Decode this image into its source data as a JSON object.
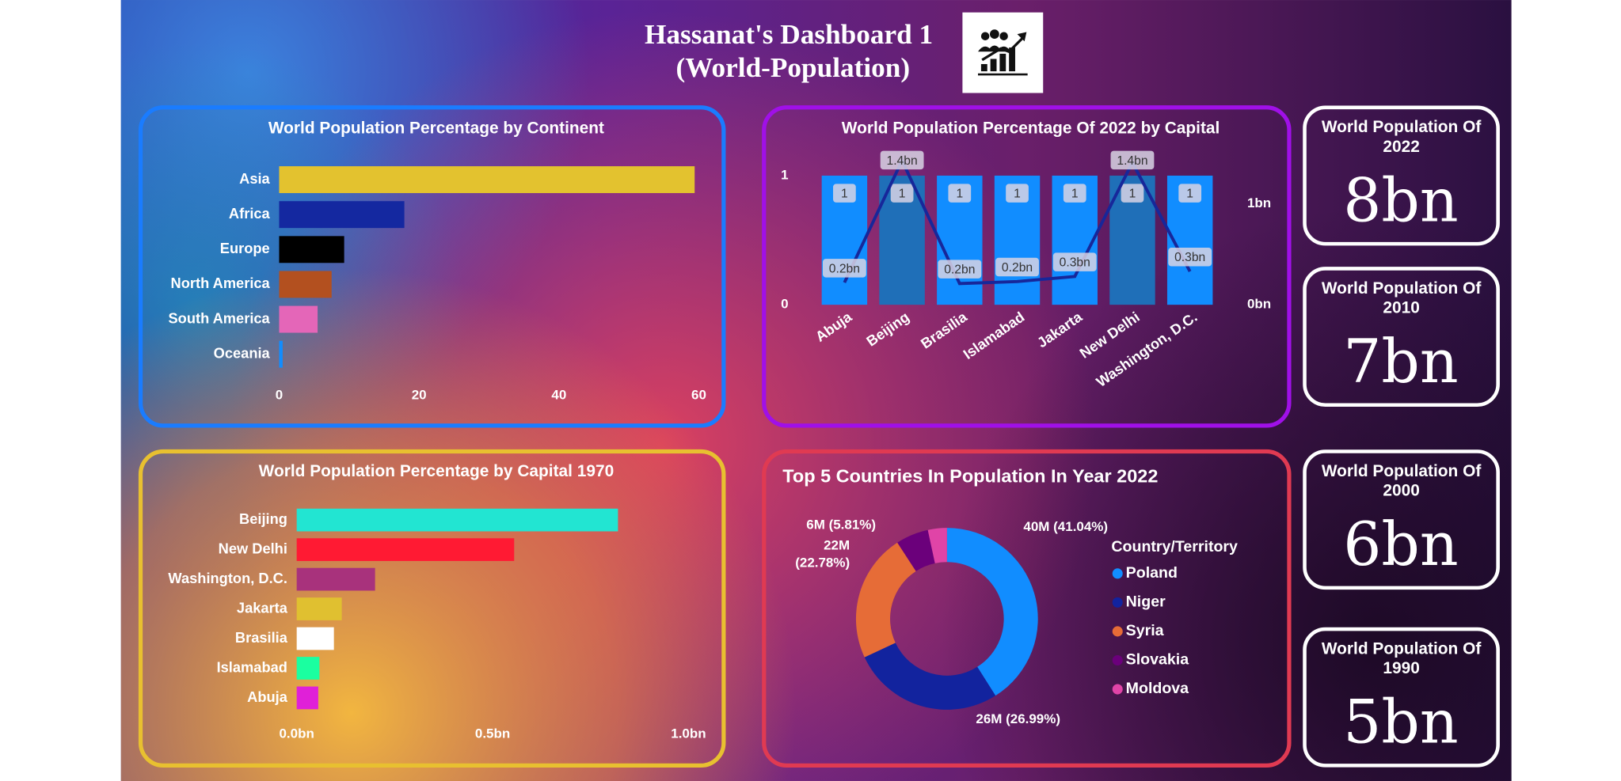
{
  "header": {
    "title": [
      "Hassanat's Dashboard 1",
      "(World-Population)"
    ]
  },
  "chart_data": [
    {
      "type": "bar",
      "orientation": "horizontal",
      "title": "World Population Percentage by Continent",
      "categories": [
        "Asia",
        "Africa",
        "Europe",
        "North America",
        "South America",
        "Oceania"
      ],
      "values": [
        59.4,
        17.9,
        9.3,
        7.5,
        5.5,
        0.5
      ],
      "colors": [
        "#e3c22f",
        "#1428a0",
        "#000000",
        "#b3501f",
        "#e466b8",
        "#118dff"
      ],
      "xlim": [
        0,
        60
      ],
      "xticks": [
        0,
        20,
        40,
        60
      ],
      "grid": false
    },
    {
      "type": "combo",
      "title": "World Population Percentage Of 2022 by Capital",
      "categories": [
        "Abuja",
        "Beijing",
        "Brasilia",
        "Islamabad",
        "Jakarta",
        "New Delhi",
        "Washington, D.C."
      ],
      "series": [
        {
          "type": "bar",
          "colors": [
            "#118dff",
            "#1f6fb8",
            "#118dff",
            "#118dff",
            "#118dff",
            "#1f6fb8",
            "#118dff"
          ],
          "values": [
            1,
            1,
            1,
            1,
            1,
            1,
            1
          ]
        },
        {
          "type": "line",
          "axis": "y2",
          "color": "#17279a",
          "values": [
            0.22,
            1.43,
            0.21,
            0.23,
            0.28,
            1.41,
            0.33
          ],
          "value_labels": [
            "0.2bn",
            "1.4bn",
            "0.2bn",
            "0.2bn",
            "0.3bn",
            "1.4bn",
            "0.3bn"
          ]
        }
      ],
      "ylim": [
        0,
        1
      ],
      "yticks": [
        0,
        1
      ],
      "y2lim": [
        0,
        1.28
      ],
      "y2ticks": [
        {
          "value": 0,
          "label": "0bn"
        },
        {
          "value": 1,
          "label": "1bn"
        }
      ],
      "grid": false
    },
    {
      "type": "bar",
      "orientation": "horizontal",
      "title": "World Population Percentage by Capital 1970",
      "categories": [
        "Beijing",
        "New Delhi",
        "Washington, D.C.",
        "Jakarta",
        "Brasilia",
        "Islamabad",
        "Abuja"
      ],
      "values": [
        0.82,
        0.555,
        0.2,
        0.115,
        0.095,
        0.058,
        0.055
      ],
      "colors": [
        "#22e5d2",
        "#ff1a33",
        "#a8327c",
        "#e0c030",
        "#ffffff",
        "#1affa0",
        "#e020d8"
      ],
      "xlim": [
        0,
        1
      ],
      "xticks": [
        {
          "value": 0,
          "label": "0.0bn"
        },
        {
          "value": 0.5,
          "label": "0.5bn"
        },
        {
          "value": 1,
          "label": "1.0bn"
        }
      ],
      "grid": false
    },
    {
      "type": "donut",
      "title": "Top 5 Countries In Population In Year 2022",
      "legend_title": "Country/Territory",
      "legend": "right",
      "categories": [
        "Poland",
        "Niger",
        "Syria",
        "Slovakia",
        "Moldova"
      ],
      "values": [
        40.0,
        26.31,
        22.2,
        5.66,
        3.29
      ],
      "value_labels": [
        "40M (41.04%)",
        "26M (26.99%)",
        "22M (22.78%)",
        "6M (5.81%)",
        null
      ],
      "colors": [
        "#118dff",
        "#12239e",
        "#e66c37",
        "#6b007b",
        "#e044a7"
      ]
    }
  ],
  "cards": [
    {
      "title": "World Population Of 2022",
      "value": "8bn"
    },
    {
      "title": "World Population Of 2010",
      "value": "7bn"
    },
    {
      "title": "World Population Of 2000",
      "value": "6bn"
    },
    {
      "title": "World Population Of 1990",
      "value": "5bn"
    }
  ]
}
